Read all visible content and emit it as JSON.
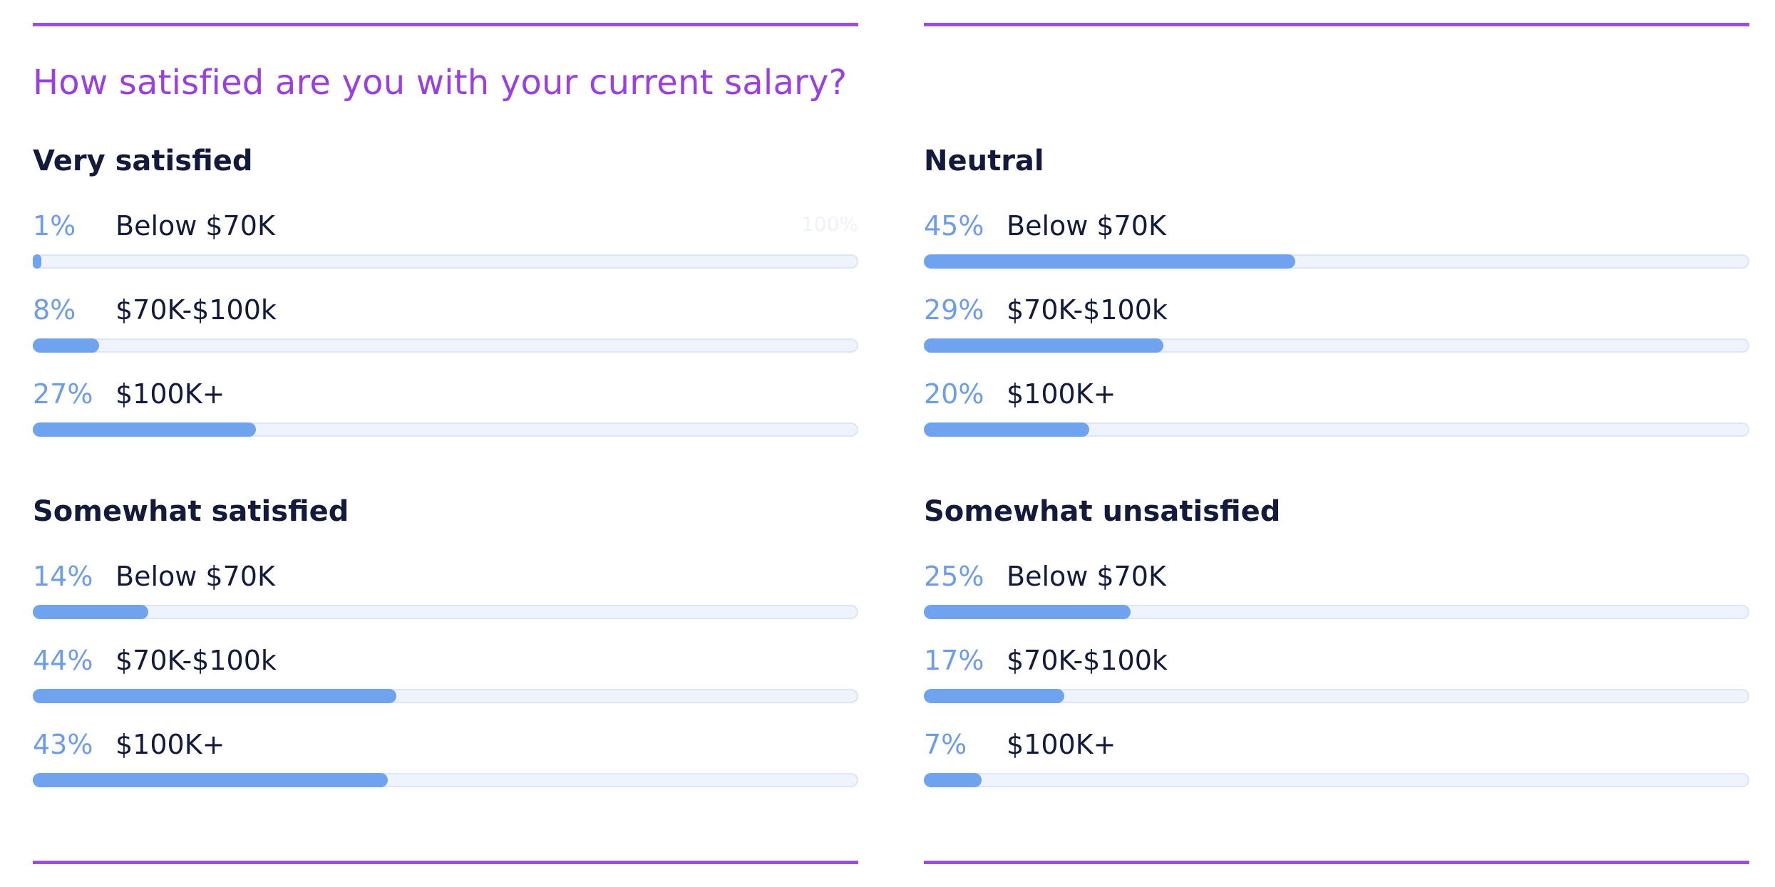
{
  "colors": {
    "accent_rule": "#9a4fe0",
    "title": "#9a3fe0",
    "bar_fill": "#6fa3f0",
    "bar_track": "#eef3fc",
    "percent_text": "#6d9de8",
    "text": "#131a3b"
  },
  "chart_data": {
    "type": "bar",
    "orientation": "horizontal",
    "title": "How satisfied are you with your current salary?",
    "scale_max_label": "100%",
    "xlim": [
      0,
      100
    ],
    "groups": [
      {
        "name": "Very satisfied",
        "bars": [
          {
            "label": "Below $70K",
            "value": 1,
            "value_label": "1%"
          },
          {
            "label": "$70K-$100k",
            "value": 8,
            "value_label": "8%"
          },
          {
            "label": "$100K+",
            "value": 27,
            "value_label": "27%"
          }
        ]
      },
      {
        "name": "Neutral",
        "bars": [
          {
            "label": "Below $70K",
            "value": 45,
            "value_label": "45%"
          },
          {
            "label": "$70K-$100k",
            "value": 29,
            "value_label": "29%"
          },
          {
            "label": "$100K+",
            "value": 20,
            "value_label": "20%"
          }
        ]
      },
      {
        "name": "Somewhat satisfied",
        "bars": [
          {
            "label": "Below $70K",
            "value": 14,
            "value_label": "14%"
          },
          {
            "label": "$70K-$100k",
            "value": 44,
            "value_label": "44%"
          },
          {
            "label": "$100K+",
            "value": 43,
            "value_label": "43%"
          }
        ]
      },
      {
        "name": "Somewhat unsatisfied",
        "bars": [
          {
            "label": "Below $70K",
            "value": 25,
            "value_label": "25%"
          },
          {
            "label": "$70K-$100k",
            "value": 17,
            "value_label": "17%"
          },
          {
            "label": "$100K+",
            "value": 7,
            "value_label": "7%"
          }
        ]
      }
    ]
  }
}
